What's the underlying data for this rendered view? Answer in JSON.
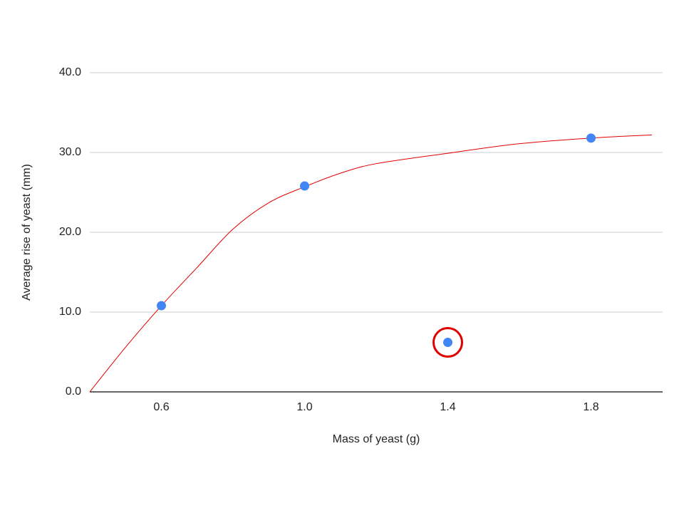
{
  "chart_data": {
    "type": "scatter",
    "x_label": "Mass of yeast (g)",
    "y_label": "Average rise of yeast (mm)",
    "points": {
      "x": [
        0.6,
        1.0,
        1.4,
        1.8
      ],
      "values": [
        10.8,
        25.8,
        6.2,
        31.8
      ],
      "color": "#4285f4"
    },
    "highlight": {
      "index": 2,
      "color": "#e00000"
    },
    "trendline": {
      "x": [
        0.4,
        0.5,
        0.6,
        0.7,
        0.8,
        0.9,
        1.0,
        1.1,
        1.2,
        1.4,
        1.6,
        1.8,
        1.97
      ],
      "values": [
        0,
        5.6,
        10.8,
        15.6,
        20.4,
        23.7,
        25.7,
        27.4,
        28.6,
        29.9,
        31.1,
        31.8,
        32.2
      ],
      "color": "#e00000"
    },
    "xlim": [
      0.4,
      2.0
    ],
    "xticks": [
      0.6,
      {
        "value": 1.0,
        "label": "1.0"
      },
      1.4,
      1.8
    ],
    "ylim": [
      0,
      40
    ],
    "yticks": [
      {
        "value": 0,
        "label": "0.0"
      },
      {
        "value": 10,
        "label": "10.0"
      },
      {
        "value": 20,
        "label": "20.0"
      },
      {
        "value": 30,
        "label": "30.0"
      },
      {
        "value": 40,
        "label": "40.0"
      }
    ],
    "grid": true
  }
}
